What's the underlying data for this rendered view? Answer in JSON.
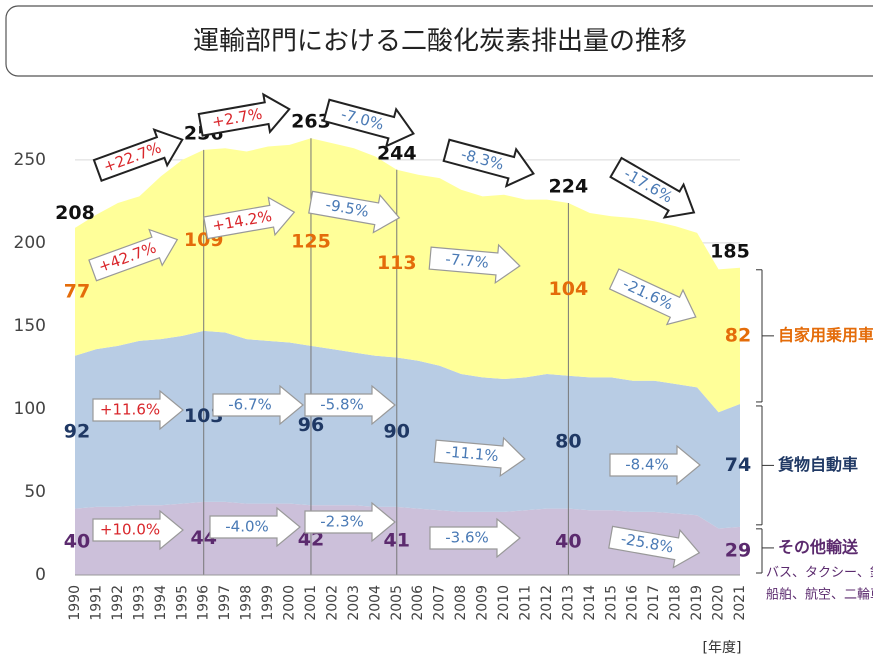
{
  "chart_data": {
    "type": "stacked_area",
    "title": "運輸部門における二酸化炭素排出量の推移",
    "x_label": "[年度]",
    "categories": [
      "1990",
      "1991",
      "1992",
      "1993",
      "1994",
      "1995",
      "1996",
      "1997",
      "1998",
      "1999",
      "2000",
      "2001",
      "2002",
      "2003",
      "2004",
      "2005",
      "2006",
      "2007",
      "2008",
      "2009",
      "2010",
      "2011",
      "2012",
      "2013",
      "2014",
      "2015",
      "2016",
      "2017",
      "2018",
      "2019",
      "2020",
      "2021"
    ],
    "series": [
      {
        "name": "その他輸送",
        "color": "#ccc0da",
        "label_color": "#5b2a6e",
        "note": [
          "バス、タクシー、鉄道、",
          "船舶、航空、二輪車"
        ],
        "values": [
          40,
          41,
          41,
          42,
          42,
          43,
          44,
          44,
          43,
          43,
          43,
          42,
          42,
          42,
          41,
          41,
          40,
          39,
          38,
          38,
          38,
          39,
          40,
          40,
          39,
          39,
          38,
          38,
          37,
          36,
          28,
          29
        ]
      },
      {
        "name": "貨物自動車",
        "color": "#b8cce4",
        "label_color": "#1f3864",
        "values": [
          92,
          95,
          97,
          99,
          100,
          101,
          103,
          102,
          99,
          98,
          97,
          96,
          94,
          92,
          91,
          90,
          89,
          87,
          83,
          81,
          80,
          80,
          81,
          80,
          80,
          80,
          79,
          79,
          78,
          77,
          70,
          74
        ]
      },
      {
        "name": "自家用乗用車",
        "color": "#ffff99",
        "label_color": "#e46c0a",
        "values": [
          77,
          81,
          86,
          87,
          98,
          106,
          109,
          111,
          113,
          117,
          119,
          125,
          124,
          123,
          120,
          113,
          112,
          113,
          111,
          109,
          111,
          107,
          105,
          104,
          99,
          97,
          98,
          96,
          95,
          93,
          86,
          82
        ]
      }
    ],
    "total_labels": [
      {
        "x": "1990",
        "value": 208
      },
      {
        "x": "1996",
        "value": 256
      },
      {
        "x": "2001",
        "value": 263
      },
      {
        "x": "2005",
        "value": 244
      },
      {
        "x": "2013",
        "value": 224
      },
      {
        "x": "2021",
        "value": 185
      }
    ],
    "annotations": [
      {
        "text": "+22.7%",
        "color": "#d9262b"
      },
      {
        "text": "+2.7%",
        "color": "#d9262b"
      },
      {
        "text": "-7.0%",
        "color": "#4a7ab5"
      },
      {
        "text": "-8.3%",
        "color": "#4a7ab5"
      },
      {
        "text": "-17.6%",
        "color": "#4a7ab5"
      },
      {
        "text": "+42.7%",
        "color": "#d9262b"
      },
      {
        "text": "+14.2%",
        "color": "#d9262b"
      },
      {
        "text": "-9.5%",
        "color": "#4a7ab5"
      },
      {
        "text": "-7.7%",
        "color": "#4a7ab5"
      },
      {
        "text": "-21.6%",
        "color": "#4a7ab5"
      },
      {
        "text": "+11.6%",
        "color": "#d9262b"
      },
      {
        "text": "-6.7%",
        "color": "#4a7ab5"
      },
      {
        "text": "-5.8%",
        "color": "#4a7ab5"
      },
      {
        "text": "-11.1%",
        "color": "#4a7ab5"
      },
      {
        "text": "-8.4%",
        "color": "#4a7ab5"
      },
      {
        "text": "+10.0%",
        "color": "#d9262b"
      },
      {
        "text": "-4.0%",
        "color": "#4a7ab5"
      },
      {
        "text": "-2.3%",
        "color": "#4a7ab5"
      },
      {
        "text": "-3.6%",
        "color": "#4a7ab5"
      },
      {
        "text": "-25.8%",
        "color": "#4a7ab5"
      }
    ],
    "ylim": [
      0,
      280
    ],
    "yticks": [
      0,
      50,
      100,
      150,
      200,
      250
    ],
    "grid": true
  }
}
